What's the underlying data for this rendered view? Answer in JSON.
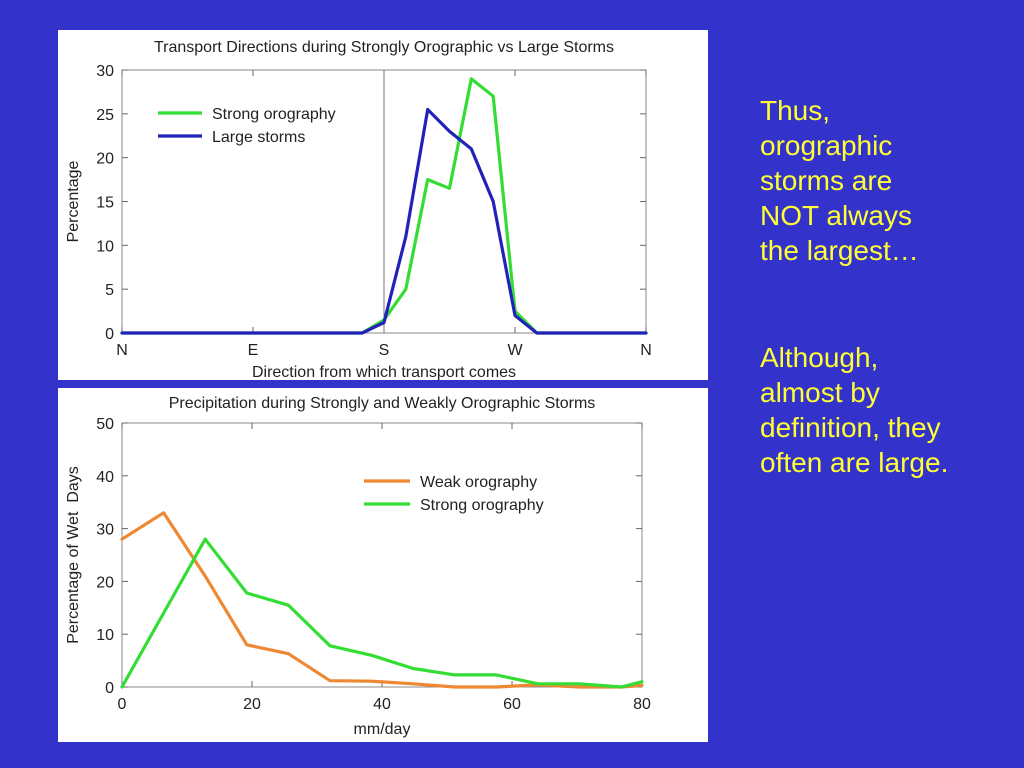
{
  "slide": {
    "text_block_1": [
      "Thus,",
      "orographic",
      "storms are",
      "NOT always",
      "the largest…"
    ],
    "text_block_2": [
      "Although,",
      "almost by",
      "definition, they",
      "often are large."
    ]
  },
  "chart_data": [
    {
      "type": "line",
      "title": "Transport Directions during Strongly Orographic vs Large Storms",
      "xlabel": "Direction from which transport comes",
      "ylabel": "Percentage",
      "xlim": [
        0,
        360
      ],
      "ylim": [
        0,
        30
      ],
      "x_ticks": [
        {
          "value": 0,
          "label": "N"
        },
        {
          "value": 90,
          "label": "E"
        },
        {
          "value": 180,
          "label": "S"
        },
        {
          "value": 270,
          "label": "W"
        },
        {
          "value": 360,
          "label": "N"
        }
      ],
      "y_ticks": [
        0,
        5,
        10,
        15,
        20,
        25,
        30
      ],
      "vertical_line_at": 180,
      "legend_position": "top-left",
      "series": [
        {
          "name": "Strong orography",
          "color": "#33dd33",
          "x": [
            0,
            165,
            180,
            195,
            210,
            225,
            240,
            255,
            270,
            285,
            300,
            315,
            330,
            345,
            360
          ],
          "y": [
            0,
            0,
            1.5,
            5,
            17.5,
            16.5,
            29,
            27,
            2.5,
            0,
            0,
            0,
            0,
            0,
            0
          ]
        },
        {
          "name": "Large storms",
          "color": "#2222bb",
          "x": [
            0,
            165,
            180,
            195,
            210,
            225,
            240,
            255,
            270,
            285,
            300,
            315,
            330,
            345,
            360
          ],
          "y": [
            0,
            0,
            1.2,
            11,
            25.5,
            23,
            21,
            15,
            2,
            0,
            0,
            0,
            0,
            0,
            0
          ]
        }
      ]
    },
    {
      "type": "line",
      "title": "Precipitation during Strongly and Weakly Orographic Storms",
      "xlabel": "mm/day",
      "ylabel": "Percentage of Wet  Days",
      "xlim": [
        0,
        80
      ],
      "ylim": [
        0,
        50
      ],
      "x_ticks": [
        0,
        20,
        40,
        60,
        80
      ],
      "y_ticks": [
        0,
        10,
        20,
        30,
        40,
        50
      ],
      "legend_position": "top-right",
      "series": [
        {
          "name": "Weak orography",
          "color": "#ee8833",
          "x": [
            0,
            6.4,
            12.8,
            19.2,
            25.6,
            32,
            38.4,
            44.8,
            51.2,
            57.6,
            64,
            70.4,
            76.8,
            80
          ],
          "y": [
            28,
            33,
            21,
            8,
            6.3,
            1.2,
            1.1,
            0.6,
            0,
            0,
            0.4,
            0,
            0,
            0.3
          ]
        },
        {
          "name": "Strong orography",
          "color": "#33dd33",
          "x": [
            0,
            6.4,
            12.8,
            19.2,
            25.6,
            32,
            38.4,
            44.8,
            51.2,
            57.6,
            64,
            70.4,
            76.8,
            80
          ],
          "y": [
            0,
            14,
            28,
            17.8,
            15.5,
            7.8,
            6,
            3.5,
            2.3,
            2.3,
            0.6,
            0.6,
            0,
            1
          ]
        }
      ]
    }
  ]
}
